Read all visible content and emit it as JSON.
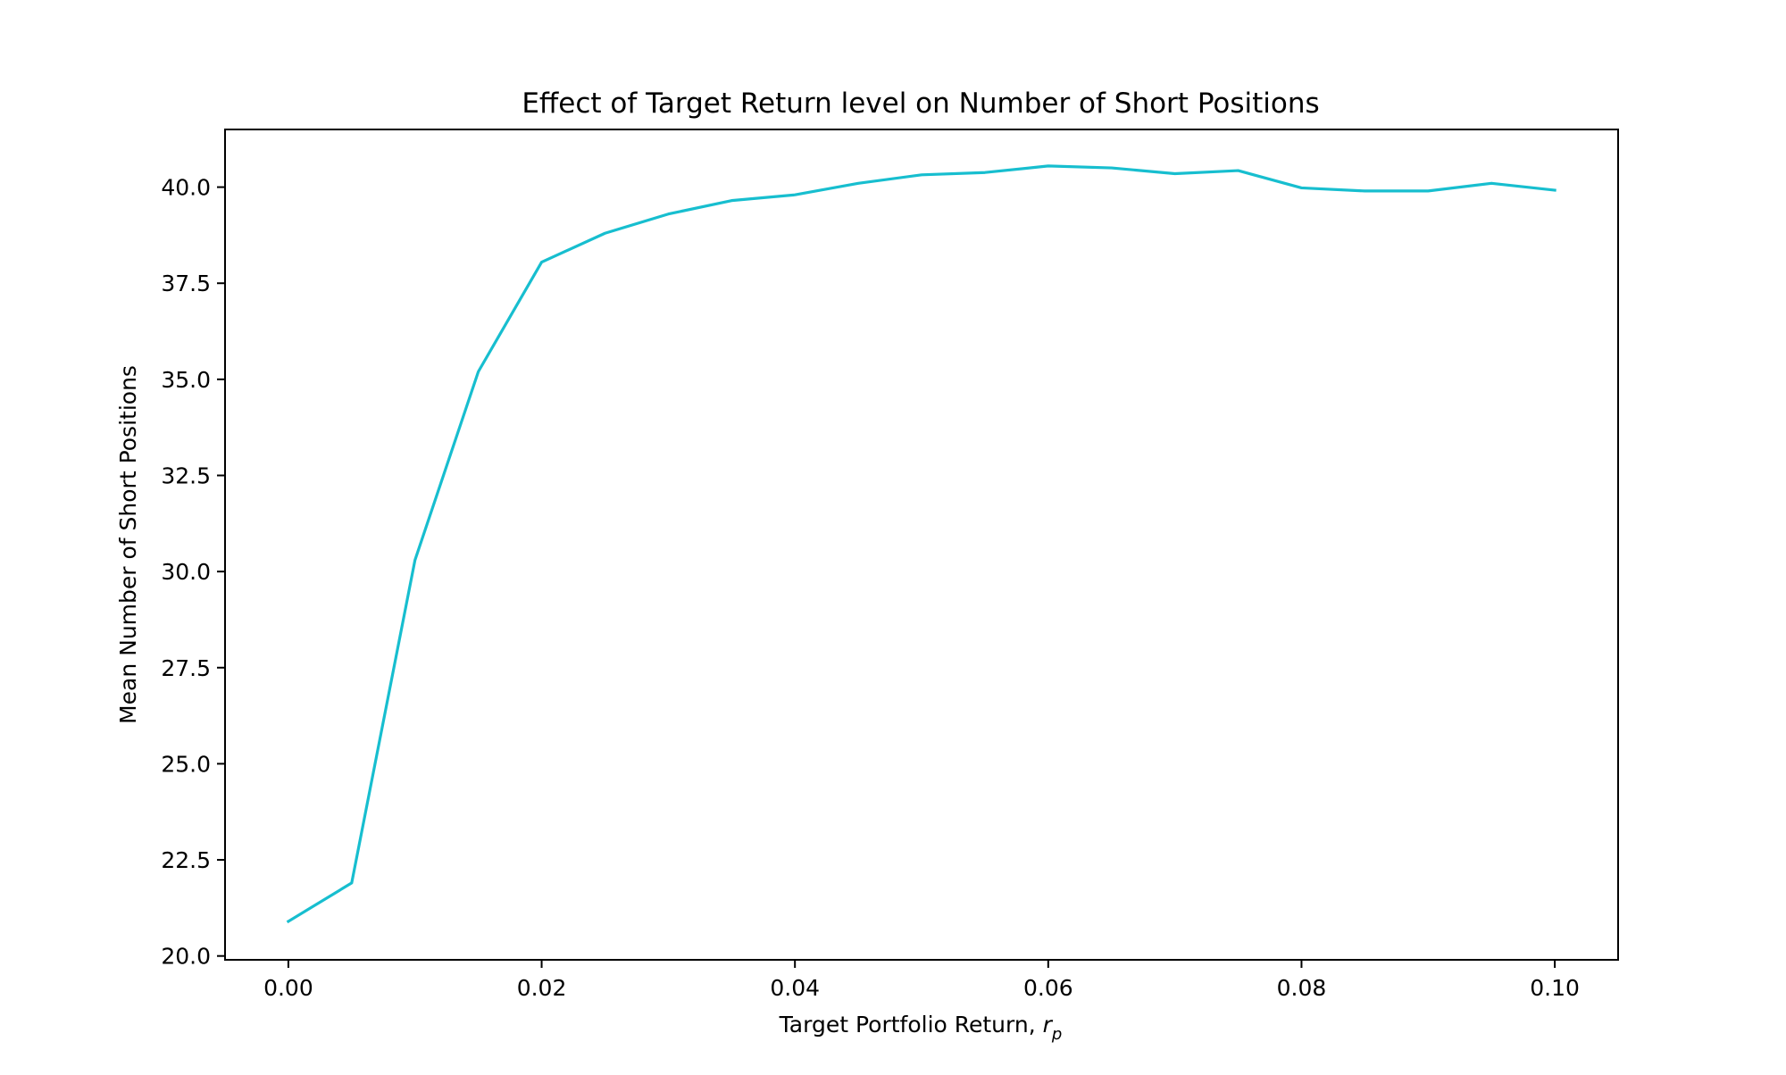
{
  "chart_data": {
    "type": "line",
    "title": "Effect of Target Return level on Number of Short Positions",
    "xlabel": {
      "main": "Target Portfolio Return, ",
      "var": "r",
      "sub": "p"
    },
    "ylabel": "Mean Number of Short Positions",
    "xlim": [
      -0.005,
      0.105
    ],
    "ylim": [
      19.9,
      41.5
    ],
    "x_ticks": [
      {
        "value": 0.0,
        "label": "0.00"
      },
      {
        "value": 0.02,
        "label": "0.02"
      },
      {
        "value": 0.04,
        "label": "0.04"
      },
      {
        "value": 0.06,
        "label": "0.06"
      },
      {
        "value": 0.08,
        "label": "0.08"
      },
      {
        "value": 0.1,
        "label": "0.10"
      }
    ],
    "y_ticks": [
      {
        "value": 20.0,
        "label": "20.0"
      },
      {
        "value": 22.5,
        "label": "22.5"
      },
      {
        "value": 25.0,
        "label": "25.0"
      },
      {
        "value": 27.5,
        "label": "27.5"
      },
      {
        "value": 30.0,
        "label": "30.0"
      },
      {
        "value": 32.5,
        "label": "32.5"
      },
      {
        "value": 35.0,
        "label": "35.0"
      },
      {
        "value": 37.5,
        "label": "37.5"
      },
      {
        "value": 40.0,
        "label": "40.0"
      }
    ],
    "grid": false,
    "series": [
      {
        "color": "#17becf",
        "x": [
          0.0,
          0.005,
          0.01,
          0.015,
          0.02,
          0.025,
          0.03,
          0.035,
          0.04,
          0.045,
          0.05,
          0.055,
          0.06,
          0.065,
          0.07,
          0.075,
          0.08,
          0.085,
          0.09,
          0.095,
          0.1
        ],
        "y": [
          20.9,
          21.9,
          30.3,
          35.2,
          38.05,
          38.8,
          39.3,
          39.65,
          39.8,
          40.1,
          40.32,
          40.38,
          40.55,
          40.5,
          40.35,
          40.43,
          39.98,
          39.9,
          39.9,
          40.1,
          39.92
        ]
      }
    ]
  }
}
